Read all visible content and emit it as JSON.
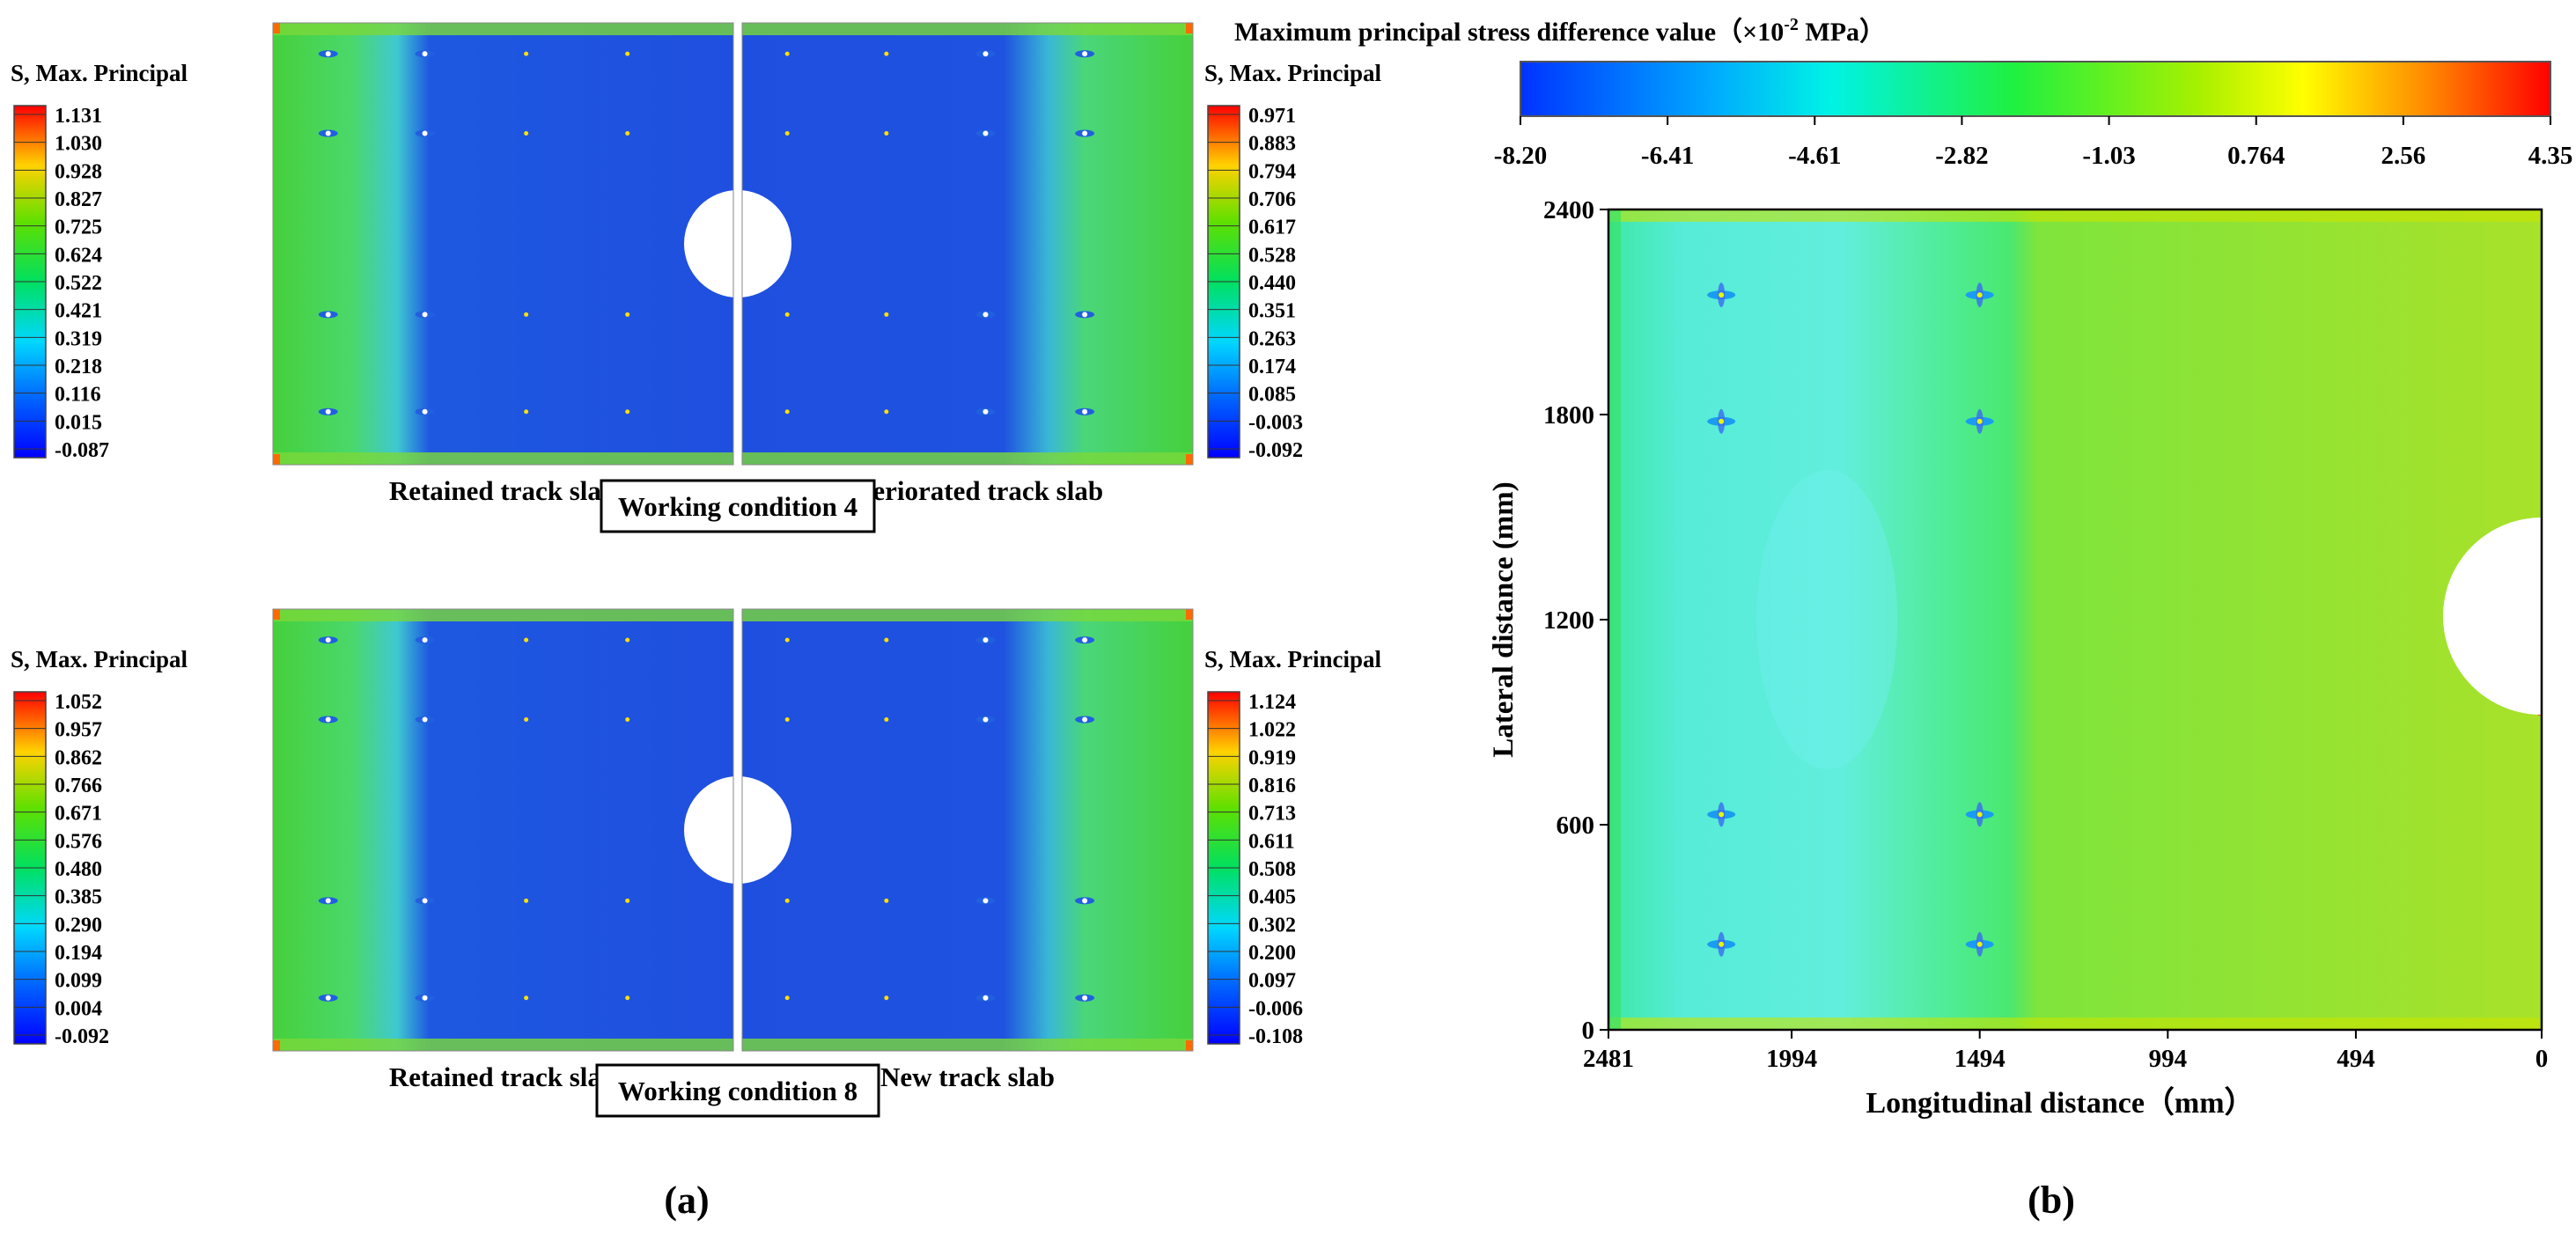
{
  "panel_a": {
    "label": "(a)",
    "group_1": {
      "title": "Working condition 4",
      "left_slab": {
        "label": "Retained track slab",
        "legend_title": "S, Max. Principal",
        "legend_values": [
          "1.131",
          "1.030",
          "0.928",
          "0.827",
          "0.725",
          "0.624",
          "0.522",
          "0.421",
          "0.319",
          "0.218",
          "0.116",
          "0.015",
          "-0.087"
        ]
      },
      "right_slab": {
        "label": "Deteriorated track slab",
        "legend_title": "S, Max. Principal",
        "legend_values": [
          "0.971",
          "0.883",
          "0.794",
          "0.706",
          "0.617",
          "0.528",
          "0.440",
          "0.351",
          "0.263",
          "0.174",
          "0.085",
          "-0.003",
          "-0.092"
        ]
      }
    },
    "group_2": {
      "title": "Working condition 8",
      "left_slab": {
        "label": "Retained track slab",
        "legend_title": "S, Max. Principal",
        "legend_values": [
          "1.052",
          "0.957",
          "0.862",
          "0.766",
          "0.671",
          "0.576",
          "0.480",
          "0.385",
          "0.290",
          "0.194",
          "0.099",
          "0.004",
          "-0.092"
        ]
      },
      "right_slab": {
        "label": "New track slab",
        "legend_title": "S, Max. Principal",
        "legend_values": [
          "1.124",
          "1.022",
          "0.919",
          "0.816",
          "0.713",
          "0.611",
          "0.508",
          "0.405",
          "0.302",
          "0.200",
          "0.097",
          "-0.006",
          "-0.108"
        ]
      }
    }
  },
  "panel_b": {
    "label": "(b)",
    "colorbar_title": "Maximum principal stress difference value（×10",
    "colorbar_title_sup": "-2",
    "colorbar_title_unit": " MPa）",
    "colorbar_ticks": [
      "-8.20",
      "-6.41",
      "-4.61",
      "-2.82",
      "-1.03",
      "0.764",
      "2.56",
      "4.35"
    ]
  },
  "chart_data": {
    "type": "heatmap",
    "title": "Maximum principal stress difference value (×10^-2 MPa)",
    "xlabel": "Longitudinal distance（mm）",
    "ylabel": "Lateral distance (mm)",
    "x_ticks": [
      2481,
      1994,
      1494,
      994,
      494,
      0
    ],
    "y_ticks": [
      0,
      600,
      1200,
      1800,
      2400
    ],
    "xlim": [
      2481,
      0
    ],
    "ylim": [
      0,
      2400
    ],
    "colorbar_range": [
      -8.2,
      4.35
    ],
    "fastener_x": [
      2181,
      1494
    ],
    "fastener_y": [
      250,
      630,
      1780,
      2150
    ]
  },
  "colors": {
    "slab_deep": "#1f4fe0",
    "slab_green": "#3fd23a",
    "slab_cyan": "#55e0b8",
    "heat_left": "#5ee8c8",
    "heat_right": "#9be22a"
  }
}
